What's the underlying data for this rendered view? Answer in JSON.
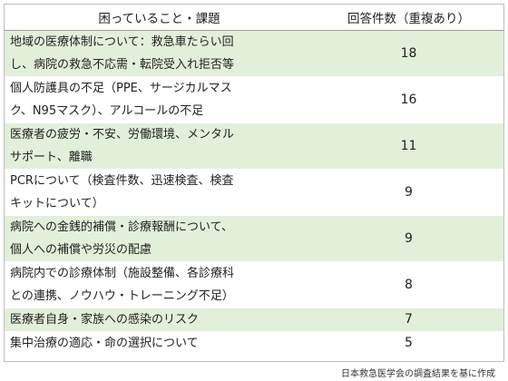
{
  "table": {
    "headers": [
      "困っていること・課題",
      "回答件数（重複あり）"
    ],
    "rows": [
      {
        "lines": [
          "地域の医療体制について：救急車たらい回",
          "し、病院の救急不応需・転院受入れ拒否等"
        ],
        "count": "18"
      },
      {
        "lines": [
          "個人防護具の不足（PPE、サージカルマス",
          "ク、N95マスク）、アルコールの不足"
        ],
        "count": "16"
      },
      {
        "lines": [
          "医療者の疲労・不安、労働環境、メンタル",
          "サポート、離職"
        ],
        "count": "11"
      },
      {
        "lines": [
          "PCRについて（検査件数、迅速検査、検査",
          "キットについて）"
        ],
        "count": "9"
      },
      {
        "lines": [
          "病院への金銭的補償・診療報酬について、",
          "個人への補償や労災の配慮"
        ],
        "count": "9"
      },
      {
        "lines": [
          "病院内での診療体制（施設整備、各診療科",
          "との連携、ノウハウ・トレーニング不足）"
        ],
        "count": "8"
      },
      {
        "lines": [
          "医療者自身・家族への感染のリスク"
        ],
        "count": "7"
      },
      {
        "lines": [
          "集中治療の適応・命の選択について"
        ],
        "count": "5"
      }
    ],
    "shade_color": "#e2efd9"
  },
  "footer": "日本救急医学会の調査結果を基に作成"
}
